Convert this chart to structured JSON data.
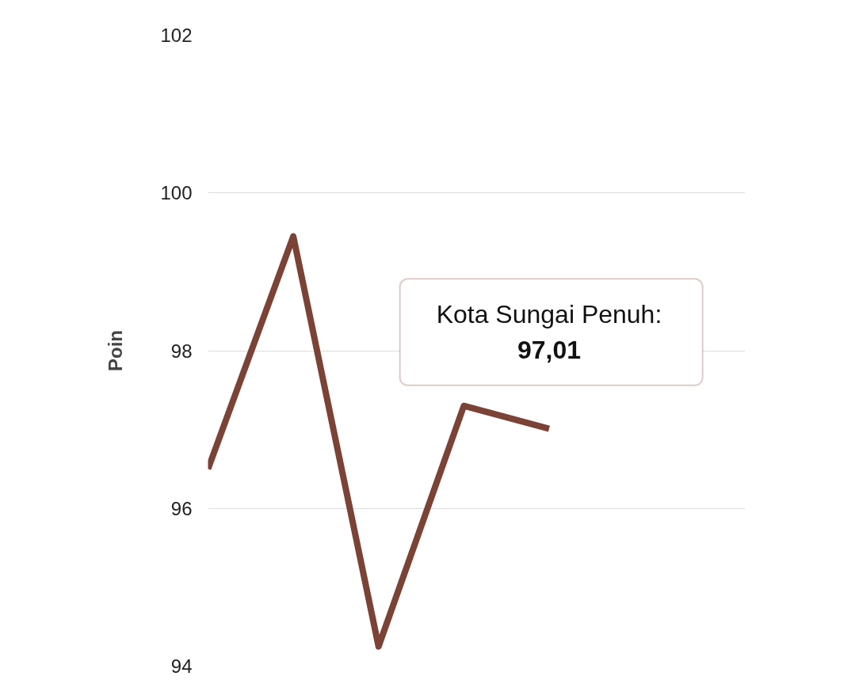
{
  "chart_data": {
    "type": "line",
    "ylabel": "Poin",
    "categories": [
      null,
      null,
      null,
      null,
      null
    ],
    "series": [
      {
        "color": "#7b4236",
        "values": [
          96.5,
          99.45,
          94.25,
          97.3,
          97.01
        ]
      }
    ],
    "ylim": [
      94,
      102
    ],
    "yticks": [
      94,
      96,
      98,
      100,
      102
    ],
    "grid": "y",
    "marker": "none",
    "line_style": "solid",
    "annotations": [
      {
        "text": "Kota Sungai Penuh:\n97,01",
        "y": 97.01
      }
    ]
  }
}
